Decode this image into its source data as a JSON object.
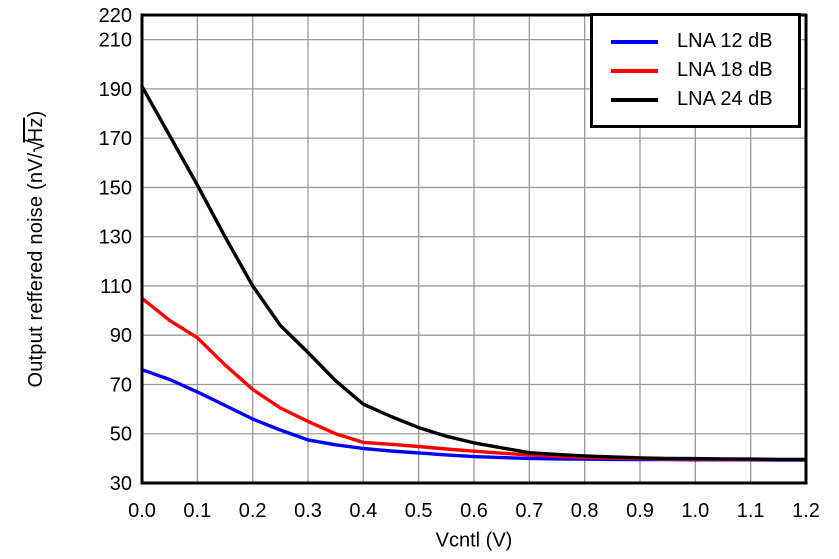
{
  "figure": {
    "background_color": "#ffffff",
    "axis_color": "#000000",
    "grid_color": "#999999",
    "text_color": "#000000"
  },
  "chart_data": {
    "type": "line",
    "title": "",
    "xlabel": "Vcntl (V)",
    "ylabel": "Output reffered noise (nV/√Hz)",
    "ylabel_parts": {
      "pre": "Output reffered noise  (nV/",
      "sqrt_arg": "Hz",
      "post": ")"
    },
    "xlim": [
      0,
      1.2
    ],
    "ylim": [
      30,
      220
    ],
    "x_tick_labels": [
      "0.0",
      "0.1",
      "0.2",
      "0.3",
      "0.4",
      "0.5",
      "0.6",
      "0.7",
      "0.8",
      "0.9",
      "1.0",
      "1.1",
      "1.2"
    ],
    "y_tick_labels": [
      "30",
      "50",
      "70",
      "90",
      "110",
      "130",
      "150",
      "170",
      "190",
      "210",
      "220"
    ],
    "grid": true,
    "legend_position": "top-right",
    "x": [
      0,
      0.05,
      0.1,
      0.15,
      0.2,
      0.25,
      0.3,
      0.35,
      0.4,
      0.45,
      0.5,
      0.55,
      0.6,
      0.65,
      0.7,
      0.75,
      0.8,
      0.85,
      0.9,
      0.95,
      1.0,
      1.05,
      1.1,
      1.15,
      1.2
    ],
    "series": [
      {
        "name": "LNA 12 dB",
        "color": "#0000ff",
        "values": [
          76,
          72,
          67,
          61.5,
          56,
          51.5,
          47.5,
          45.5,
          44,
          43,
          42.2,
          41.4,
          40.7,
          40.3,
          40,
          39.8,
          39.7,
          39.6,
          39.5,
          39.5,
          39.4,
          39.4,
          39.4,
          39.3,
          39.3
        ]
      },
      {
        "name": "LNA 18 dB",
        "color": "#ff0000",
        "values": [
          105,
          96,
          89,
          78,
          68,
          60.5,
          55,
          50,
          46.5,
          45.7,
          44.8,
          43.8,
          42.9,
          42.1,
          41.4,
          40.8,
          40.4,
          40.1,
          39.9,
          39.8,
          39.7,
          39.6,
          39.6,
          39.5,
          39.5
        ]
      },
      {
        "name": "LNA 24 dB",
        "color": "#000000",
        "values": [
          191,
          171,
          151,
          130,
          110,
          94,
          83,
          71.5,
          62,
          57,
          52.5,
          49,
          46.3,
          44.3,
          42.3,
          41.6,
          41,
          40.6,
          40.2,
          40,
          39.9,
          39.8,
          39.7,
          39.6,
          39.6
        ]
      }
    ]
  }
}
